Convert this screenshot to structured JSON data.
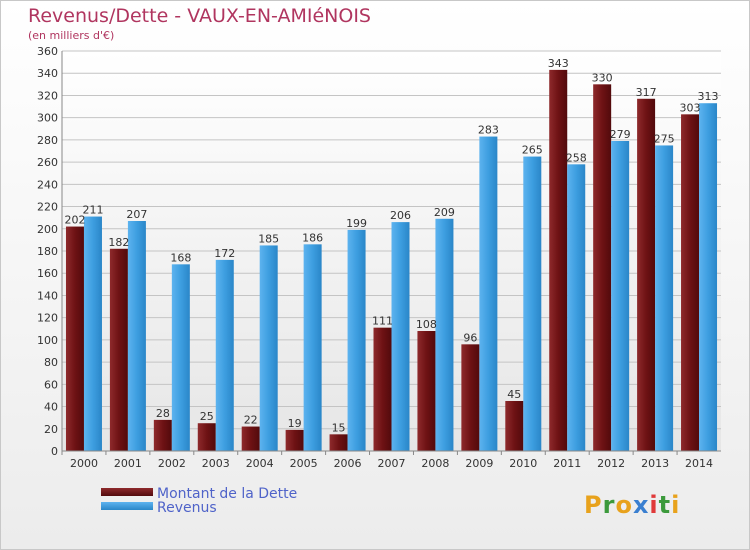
{
  "header": {
    "title": "Revenus/Dette - VAUX-EN-AMIéNOIS",
    "subtitle": "(en milliers d'€)"
  },
  "legend": {
    "items": [
      {
        "label": "Montant de la Dette",
        "color": "#7a1518"
      },
      {
        "label": "Revenus",
        "color": "#3d9ee0"
      }
    ]
  },
  "logo": {
    "letters": [
      "P",
      "r",
      "o",
      "x",
      "i",
      "t",
      "i"
    ],
    "colors": [
      "#e8a21c",
      "#3c9a3c",
      "#e8a21c",
      "#3a7fd0",
      "#e03a3a",
      "#3c9a3c",
      "#e8a21c"
    ]
  },
  "chart_data": {
    "type": "bar",
    "title": "Revenus/Dette - VAUX-EN-AMIéNOIS",
    "subtitle": "(en milliers d'€)",
    "categories": [
      "2000",
      "2001",
      "2002",
      "2003",
      "2004",
      "2005",
      "2006",
      "2007",
      "2008",
      "2009",
      "2010",
      "2011",
      "2012",
      "2013",
      "2014"
    ],
    "series": [
      {
        "name": "Montant de la Dette",
        "color": "#7a1518",
        "values": [
          202,
          182,
          28,
          25,
          22,
          19,
          15,
          111,
          108,
          96,
          45,
          343,
          330,
          317,
          303
        ]
      },
      {
        "name": "Revenus",
        "color": "#3d9ee0",
        "values": [
          211,
          207,
          168,
          172,
          185,
          186,
          199,
          206,
          209,
          283,
          265,
          258,
          279,
          275,
          313
        ]
      }
    ],
    "ylim": [
      0,
      360
    ],
    "yticks": [
      0,
      20,
      40,
      60,
      80,
      100,
      120,
      140,
      160,
      180,
      200,
      220,
      240,
      260,
      280,
      300,
      320,
      340,
      360
    ],
    "grid": true,
    "legend_position": "bottom-left"
  }
}
